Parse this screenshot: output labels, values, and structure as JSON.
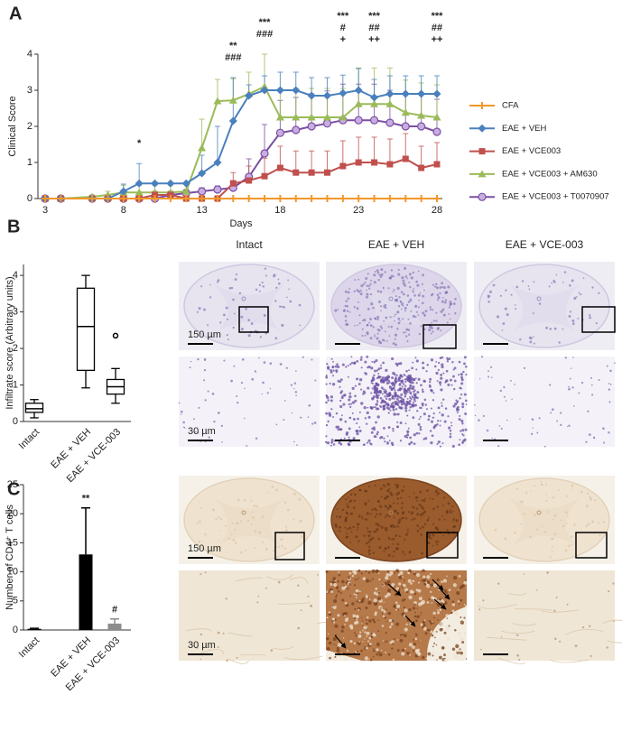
{
  "panels": [
    "A",
    "B",
    "C"
  ],
  "chart_data": [
    {
      "type": "line",
      "ylabel": "Clinical Score",
      "xlabel": "Days",
      "x": [
        3,
        4,
        6,
        7,
        8,
        9,
        10,
        11,
        12,
        13,
        14,
        15,
        16,
        17,
        18,
        19,
        20,
        21,
        22,
        23,
        24,
        25,
        26,
        27,
        28
      ],
      "xlim": [
        3,
        28
      ],
      "xticks": [
        3,
        8,
        13,
        18,
        23,
        28
      ],
      "ylim": [
        0,
        4
      ],
      "yticks": [
        0,
        1,
        2,
        3,
        4
      ],
      "series": [
        {
          "name": "CFA",
          "color": "#f0982a",
          "marker": "plus",
          "values": [
            0,
            0,
            0,
            0,
            0,
            0,
            0,
            0,
            0,
            0,
            0,
            0,
            0,
            0,
            0,
            0,
            0,
            0,
            0,
            0,
            0,
            0,
            0,
            0,
            0
          ]
        },
        {
          "name": "EAE + VEH",
          "color": "#4a80bd",
          "marker": "diamond",
          "values": [
            0,
            0,
            0,
            0,
            0.2,
            0.42,
            0.42,
            0.42,
            0.42,
            0.7,
            1.0,
            2.15,
            2.85,
            3.0,
            3.0,
            3.0,
            2.85,
            2.85,
            2.92,
            3.0,
            2.8,
            2.9,
            2.9,
            2.9,
            2.9
          ],
          "errors": [
            0,
            0,
            0,
            0,
            0.2,
            0.55,
            0,
            0,
            0,
            0.5,
            1.0,
            1.2,
            0.3,
            0.4,
            0.5,
            0.5,
            0.5,
            0.5,
            0.5,
            0.6,
            0.5,
            0.5,
            0.5,
            0.5,
            0.5
          ]
        },
        {
          "name": "EAE + VCE003",
          "color": "#c0504d",
          "marker": "square",
          "values": [
            0,
            0,
            0,
            0,
            0,
            0,
            0.1,
            0.1,
            0,
            0,
            0,
            0.42,
            0.5,
            0.62,
            0.85,
            0.72,
            0.72,
            0.72,
            0.9,
            1.0,
            1.0,
            0.95,
            1.1,
            0.85,
            0.95
          ],
          "errors": [
            0,
            0,
            0,
            0,
            0,
            0,
            0.1,
            0.1,
            0,
            0,
            0,
            0.3,
            0.4,
            0.5,
            0.6,
            0.6,
            0.6,
            0.6,
            0.7,
            0.7,
            0.7,
            0.7,
            0.7,
            0.6,
            0.6
          ]
        },
        {
          "name": "EAE + VCE003 + AM630",
          "color": "#9bbb59",
          "marker": "triangle",
          "values": [
            0,
            0,
            0.05,
            0.1,
            0.17,
            0.17,
            0.17,
            0.17,
            0.2,
            1.4,
            2.7,
            2.72,
            2.9,
            3.1,
            2.25,
            2.25,
            2.25,
            2.25,
            2.25,
            2.62,
            2.62,
            2.62,
            2.38,
            2.3,
            2.25
          ],
          "errors": [
            0,
            0,
            0.05,
            0.1,
            0.2,
            0.2,
            0.2,
            0.2,
            0.2,
            0.8,
            0.6,
            0.6,
            0.6,
            0.9,
            0.8,
            0.8,
            0.8,
            0.8,
            0.8,
            1.0,
            1.0,
            1.0,
            0.9,
            0.9,
            0.9
          ]
        },
        {
          "name": "EAE + VCE003 + T0070907",
          "color": "#7b4ea3",
          "marker": "circle",
          "values": [
            0,
            0,
            0,
            0,
            0,
            0,
            0,
            0.1,
            0.15,
            0.2,
            0.25,
            0.3,
            0.6,
            1.25,
            1.82,
            1.9,
            2.0,
            2.08,
            2.17,
            2.17,
            2.17,
            2.1,
            2.0,
            2.0,
            1.85
          ],
          "errors": [
            0,
            0,
            0,
            0,
            0,
            0,
            0,
            0.1,
            0.1,
            0.1,
            0.1,
            0.2,
            0.5,
            0.8,
            0.9,
            0.9,
            0.9,
            0.9,
            1.0,
            1.0,
            1.0,
            0.9,
            0.9,
            0.9,
            0.9
          ]
        }
      ],
      "annotations": [
        {
          "x": 9,
          "lines": [
            "*"
          ]
        },
        {
          "x": 15,
          "lines": [
            "**",
            "###"
          ]
        },
        {
          "x": 17,
          "lines": [
            "***",
            "###"
          ]
        },
        {
          "x": 22,
          "lines": [
            "***",
            "#",
            "+"
          ]
        },
        {
          "x": 24,
          "lines": [
            "***",
            "##",
            "++"
          ]
        },
        {
          "x": 28,
          "lines": [
            "***",
            "##",
            "++"
          ]
        }
      ]
    },
    {
      "type": "box",
      "ylabel": "Infiltrate score (Arbitrary units)",
      "categories": [
        "Intact",
        "EAE + VEH",
        "EAE + VCE-003"
      ],
      "ylim": [
        0,
        4.3
      ],
      "yticks": [
        0,
        1,
        2,
        3,
        4
      ],
      "boxes": [
        {
          "min": 0.1,
          "q1": 0.25,
          "median": 0.35,
          "q3": 0.5,
          "max": 0.6
        },
        {
          "min": 0.92,
          "q1": 1.4,
          "median": 2.6,
          "q3": 3.65,
          "max": 4.0
        },
        {
          "min": 0.5,
          "q1": 0.75,
          "median": 0.95,
          "q3": 1.15,
          "max": 1.45,
          "outliers": [
            2.35
          ]
        }
      ]
    },
    {
      "type": "bar",
      "ylabel": "Number of CD4⁺ T cells",
      "categories": [
        "Intact",
        "EAE + VEH",
        "EAE + VCE-003"
      ],
      "values": [
        0.2,
        13,
        1.1
      ],
      "errors": [
        0.1,
        8,
        0.8
      ],
      "colors": [
        "#000000",
        "#000000",
        "#8c8c8c"
      ],
      "ylim": [
        0,
        25
      ],
      "yticks": [
        0,
        5,
        10,
        15,
        20,
        25
      ],
      "annotations": [
        null,
        "**",
        "#"
      ]
    }
  ],
  "micrographs": {
    "columns": [
      "Intact",
      "EAE + VEH",
      "EAE + VCE-003"
    ],
    "scale_bars": [
      "150 µm",
      "30 µm",
      "150 µm",
      "30 µm"
    ]
  }
}
